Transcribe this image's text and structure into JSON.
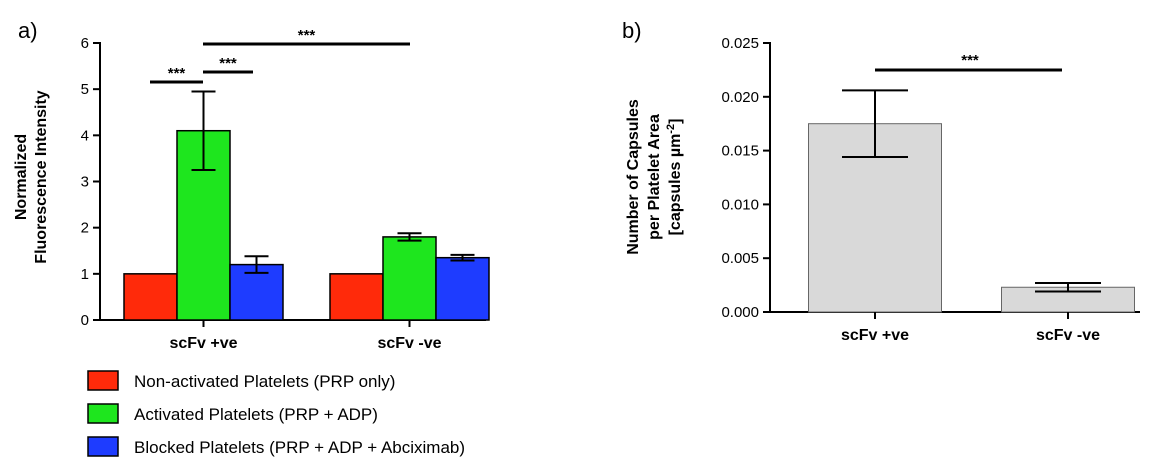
{
  "chart_data": [
    {
      "panel_label": "a)",
      "type": "bar",
      "ylabel_lines": [
        "Normalized",
        "Fluorescence Intensity"
      ],
      "ylim": [
        0,
        6
      ],
      "yticks": [
        "0",
        "1",
        "2",
        "3",
        "4",
        "5",
        "6"
      ],
      "categories": [
        "scFv +ve",
        "scFv -ve"
      ],
      "series": [
        {
          "name": "Non-activated Platelets (PRP only)",
          "color": "#ff2a0a",
          "values": [
            1.0,
            1.0
          ],
          "errors": [
            0,
            0
          ]
        },
        {
          "name": "Activated Platelets (PRP + ADP)",
          "color": "#1ee61e",
          "values": [
            4.1,
            1.8
          ],
          "errors": [
            0.85,
            0.08
          ]
        },
        {
          "name": "Blocked Platelets (PRP + ADP + Abciximab)",
          "color": "#1e3cff",
          "values": [
            1.2,
            1.35
          ],
          "errors": [
            0.18,
            0.06
          ]
        }
      ],
      "significance": [
        "***",
        "***",
        "***"
      ]
    },
    {
      "panel_label": "b)",
      "type": "bar",
      "ylabel_lines": [
        "Number of Capsules",
        "per Platelet Area",
        "[capsules µm",
        "-2",
        "]"
      ],
      "ylim": [
        0,
        0.025
      ],
      "yticks": [
        "0.000",
        "0.005",
        "0.010",
        "0.015",
        "0.020",
        "0.025"
      ],
      "categories": [
        "scFv +ve",
        "scFv -ve"
      ],
      "values": [
        0.0175,
        0.0023
      ],
      "errors": [
        0.0031,
        0.0004
      ],
      "color": "#d9d9d9",
      "significance": [
        "***"
      ]
    }
  ]
}
